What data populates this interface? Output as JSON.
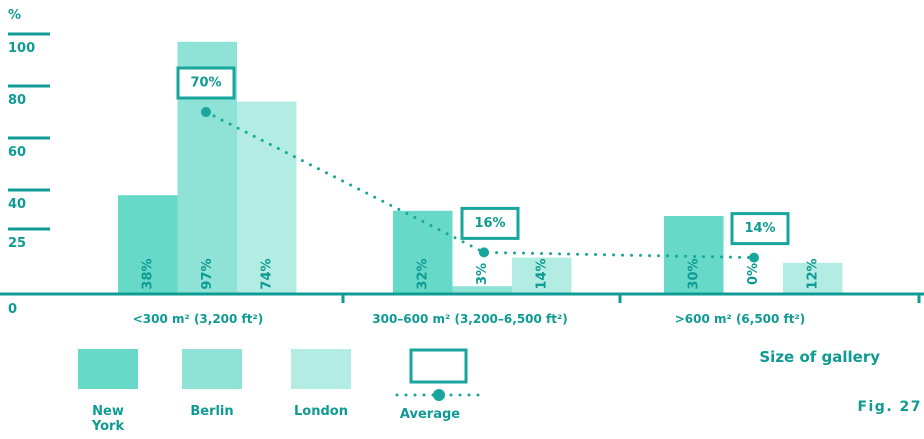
{
  "chart_data": {
    "type": "bar",
    "ylabel": "%",
    "xlabel": "Size of gallery",
    "figure_label": "Fig. 27",
    "yticks": [
      0,
      25,
      40,
      60,
      80,
      100
    ],
    "categories": [
      "<300 m² (3,200 ft²)",
      "300–600 m² (3,200–6,500 ft²)",
      ">600 m² (6,500 ft²)"
    ],
    "series": [
      {
        "name": "New York",
        "values": [
          38,
          32,
          30
        ],
        "labels": [
          "38%",
          "32%",
          "30%"
        ],
        "color": "#66d9c8"
      },
      {
        "name": "Berlin",
        "values": [
          97,
          3,
          0
        ],
        "labels": [
          "97%",
          "3%",
          "0%"
        ],
        "color": "#8ee3d6"
      },
      {
        "name": "London",
        "values": [
          74,
          14,
          12
        ],
        "labels": [
          "74%",
          "14%",
          "12%"
        ],
        "color": "#b3ece3"
      }
    ],
    "average": {
      "name": "Average",
      "values": [
        70,
        16,
        14
      ],
      "labels": [
        "70%",
        "16%",
        "14%"
      ],
      "color": "#17a59c"
    }
  }
}
